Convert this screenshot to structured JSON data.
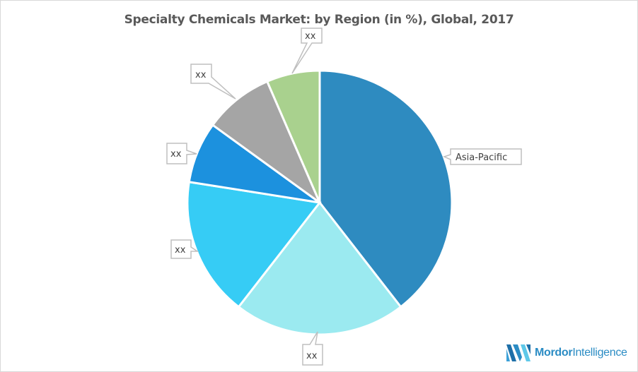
{
  "chart_data": {
    "type": "pie",
    "title": "Specialty Chemicals Market: by Region (in %), Global, 2017",
    "categories": [
      "Asia-Pacific",
      "xx",
      "xx",
      "xx",
      "xx",
      "xx"
    ],
    "values": [
      39.5,
      21.0,
      17.0,
      7.5,
      8.5,
      6.5
    ],
    "colors": [
      "#2e8bc0",
      "#9beaf0",
      "#36ccf5",
      "#1c91de",
      "#a5a5a5",
      "#a9d18e"
    ],
    "labels": [
      "Asia-Pacific",
      "xx",
      "xx",
      "xx",
      "xx",
      "xx"
    ],
    "start_angle": "12 o'clock, clockwise",
    "legend": "none (callout data labels)"
  },
  "header": {
    "title": "Specialty Chemicals Market: by Region (in %), Global, 2017"
  },
  "brand": {
    "name_bold": "Mordor",
    "name_light": "Intelligence",
    "color": "#2b8cc4"
  }
}
